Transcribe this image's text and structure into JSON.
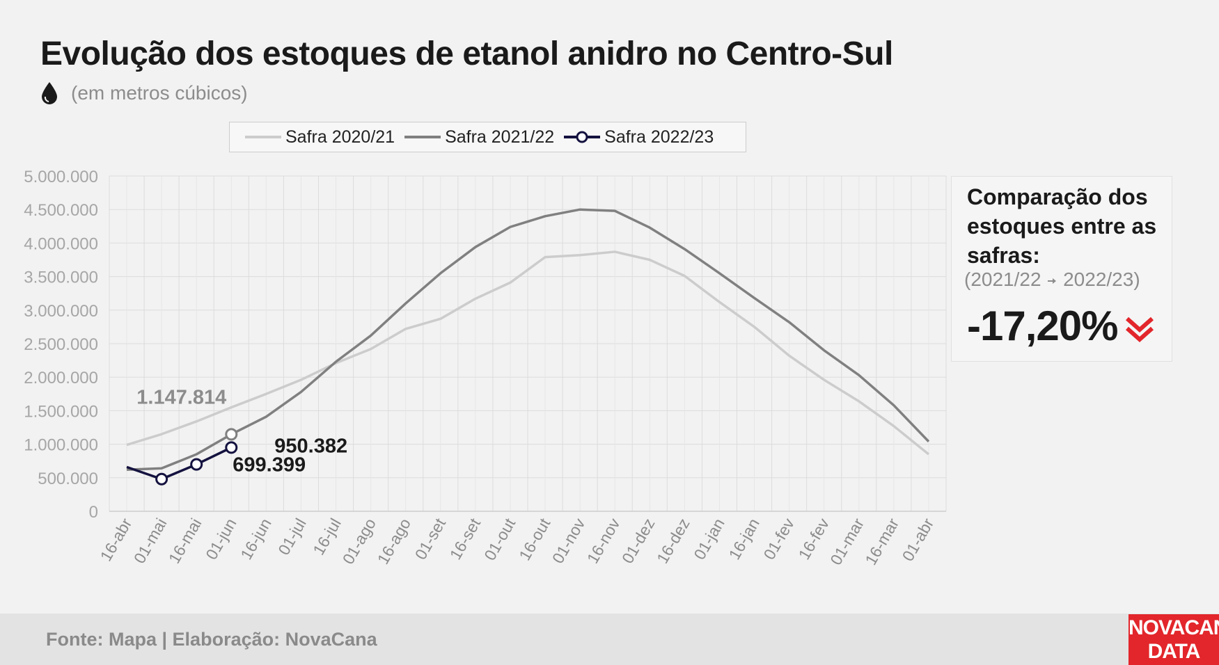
{
  "header": {
    "title": "Evolução dos estoques de etanol anidro no Centro-Sul",
    "subtitle": "(em metros cúbicos)"
  },
  "legend": {
    "items": [
      {
        "label": "Safra 2020/21",
        "color": "#cccccc"
      },
      {
        "label": "Safra 2021/22",
        "color": "#808080"
      },
      {
        "label": "Safra 2022/23",
        "color": "#14123f"
      }
    ]
  },
  "side_panel": {
    "title": "Comparação dos estoques entre as safras:",
    "comparison_from": "(2021/22",
    "comparison_to": "2022/23)",
    "percentage": "-17,20%",
    "down_icon": "double-chevron-down-icon",
    "accent_color": "#e2262b"
  },
  "footer": {
    "source": "Fonte: Mapa | Elaboração: NovaCana",
    "logo_line1": "NOVACANA",
    "logo_line2": "DATA"
  },
  "chart_data": {
    "type": "line",
    "categories": [
      "16-abr",
      "01-mai",
      "16-mai",
      "01-jun",
      "16-jun",
      "01-jul",
      "16-jul",
      "01-ago",
      "16-ago",
      "01-set",
      "16-set",
      "01-out",
      "16-out",
      "01-nov",
      "16-nov",
      "01-dez",
      "16-dez",
      "01-jan",
      "16-jan",
      "01-fev",
      "16-fev",
      "01-mar",
      "16-mar",
      "01-abr"
    ],
    "ylim": [
      0,
      5000000
    ],
    "yticks": [
      0,
      500000,
      1000000,
      1500000,
      2000000,
      2500000,
      3000000,
      3500000,
      4000000,
      4500000,
      5000000
    ],
    "ytick_labels": [
      "0",
      "500.000",
      "1.000.000",
      "1.500.000",
      "2.000.000",
      "2.500.000",
      "3.000.000",
      "3.500.000",
      "4.000.000",
      "4.500.000",
      "5.000.000"
    ],
    "grid": true,
    "legend_position": "top",
    "series": [
      {
        "name": "Safra 2020/21",
        "color": "#cccccc",
        "values": [
          990000,
          1150000,
          1340000,
          1550000,
          1750000,
          1960000,
          2210000,
          2420000,
          2720000,
          2870000,
          3170000,
          3410000,
          3790000,
          3820000,
          3870000,
          3750000,
          3510000,
          3120000,
          2750000,
          2320000,
          1960000,
          1640000,
          1270000,
          850000
        ]
      },
      {
        "name": "Safra 2021/22",
        "color": "#808080",
        "values": [
          620000,
          640000,
          850000,
          1147814,
          1410000,
          1780000,
          2230000,
          2620000,
          3100000,
          3550000,
          3940000,
          4240000,
          4400000,
          4500000,
          4480000,
          4230000,
          3910000,
          3550000,
          3180000,
          2820000,
          2400000,
          2030000,
          1580000,
          1040000
        ]
      },
      {
        "name": "Safra 2022/23",
        "color": "#14123f",
        "markers": true,
        "values": [
          660000,
          480000,
          699399,
          950382,
          null,
          null,
          null,
          null,
          null,
          null,
          null,
          null,
          null,
          null,
          null,
          null,
          null,
          null,
          null,
          null,
          null,
          null,
          null,
          null
        ]
      }
    ],
    "annotations": [
      {
        "text": "1.147.814",
        "series": 1,
        "index": 3,
        "color": "#8c8c8c"
      },
      {
        "text": "950.382",
        "series": 2,
        "index": 3,
        "color": "#1a1a1a"
      },
      {
        "text": "699.399",
        "series": 2,
        "index": 2,
        "color": "#1a1a1a"
      }
    ]
  }
}
